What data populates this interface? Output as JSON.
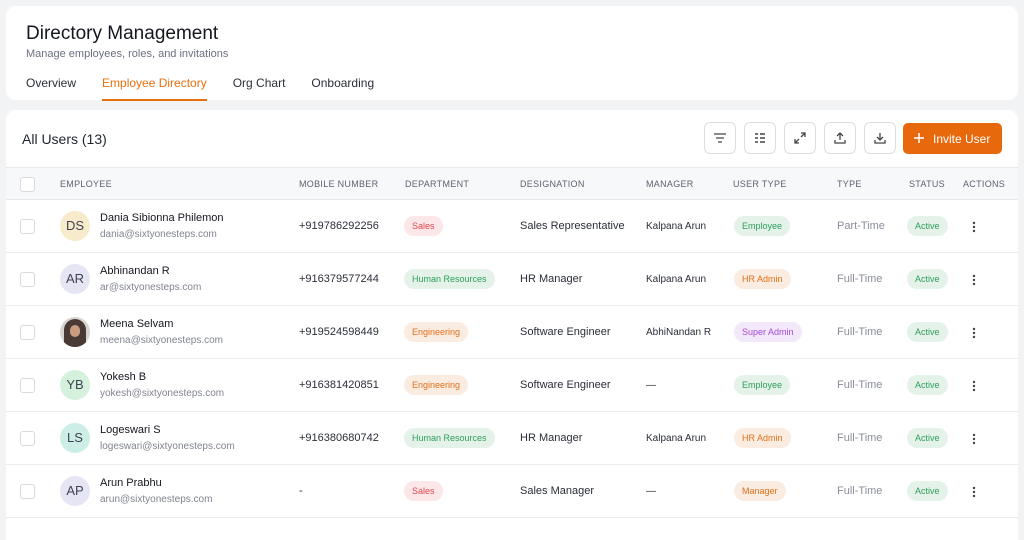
{
  "header": {
    "title": "Directory Management",
    "subtitle": "Manage employees, roles, and invitations",
    "tabs": [
      "Overview",
      "Employee Directory",
      "Org Chart",
      "Onboarding"
    ],
    "active_tab": 1
  },
  "table": {
    "title": "All Users (13)",
    "invite_button": "Invite User",
    "columns": [
      "EMPLOYEE",
      "MOBILE NUMBER",
      "DEPARTMENT",
      "DESIGNATION",
      "MANAGER",
      "USER TYPE",
      "TYPE",
      "STATUS",
      "ACTIONS"
    ],
    "rows": [
      {
        "initials": "DS",
        "avatar_color": "#f7ebcc",
        "name": "Dania Sibionna Philemon",
        "email": "dania@sixtyonesteps.com",
        "mobile": "+919786292256",
        "department": "Sales",
        "department_color": "#e0474c",
        "designation": "Sales Representative",
        "manager": "Kalpana Arun",
        "user_type": "Employee",
        "user_type_color": "#2f9e5b",
        "type": "Part-Time",
        "status": "Active",
        "status_color": "#2f9e5b"
      },
      {
        "initials": "AR",
        "avatar_color": "#e6e5f4",
        "name": "Abhinandan R",
        "email": "ar@sixtyonesteps.com",
        "mobile": "+916379577244",
        "department": "Human Resources",
        "department_color": "#2f9e5b",
        "designation": "HR Manager",
        "manager": "Kalpana Arun",
        "user_type": "HR Admin",
        "user_type_color": "#e0701a",
        "type": "Full-Time",
        "status": "Active",
        "status_color": "#2f9e5b"
      },
      {
        "avatar_color": "#4a3a36",
        "name": "Meena Selvam",
        "email": "meena@sixtyonesteps.com",
        "mobile": "+919524598449",
        "department": "Engineering",
        "department_color": "#e0701a",
        "designation": "Software Engineer",
        "manager": "AbhiNandan R",
        "user_type": "Super Admin",
        "user_type_color": "#a34ad8",
        "type": "Full-Time",
        "status": "Active",
        "status_color": "#2f9e5b"
      },
      {
        "initials": "YB",
        "avatar_color": "#d5f1de",
        "name": "Yokesh B",
        "email": "yokesh@sixtyonesteps.com",
        "mobile": "+916381420851",
        "department": "Engineering",
        "department_color": "#e0701a",
        "designation": "Software Engineer",
        "manager": "—",
        "user_type": "Employee",
        "user_type_color": "#2f9e5b",
        "type": "Full-Time",
        "status": "Active",
        "status_color": "#2f9e5b"
      },
      {
        "initials": "LS",
        "avatar_color": "#cdeee6",
        "name": "Logeswari S",
        "email": "logeswari@sixtyonesteps.com",
        "mobile": "+916380680742",
        "department": "Human Resources",
        "department_color": "#2f9e5b",
        "designation": "HR Manager",
        "manager": "Kalpana Arun",
        "user_type": "HR Admin",
        "user_type_color": "#e0701a",
        "type": "Full-Time",
        "status": "Active",
        "status_color": "#2f9e5b"
      },
      {
        "initials": "AP",
        "avatar_color": "#e6e5f4",
        "name": "Arun Prabhu",
        "email": "arun@sixtyonesteps.com",
        "mobile": "-",
        "department": "Sales",
        "department_color": "#e0474c",
        "designation": "Sales Manager",
        "manager": "—",
        "user_type": "Manager",
        "user_type_color": "#e0701a",
        "type": "Full-Time",
        "status": "Active",
        "status_color": "#2f9e5b"
      }
    ]
  }
}
